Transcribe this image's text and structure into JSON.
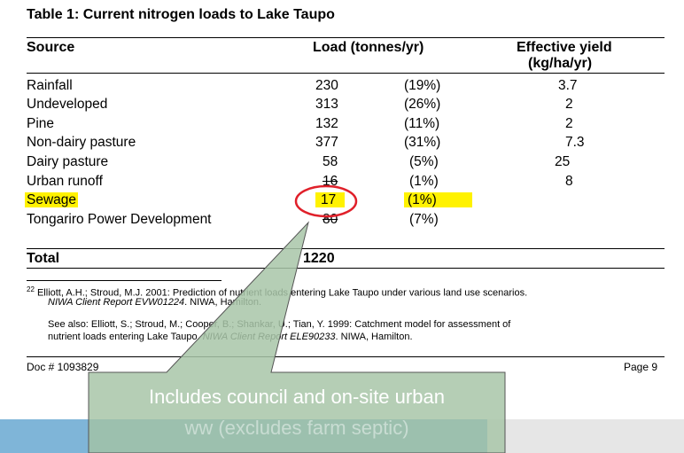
{
  "table": {
    "title": "Table 1:  Current nitrogen loads to Lake Taupo",
    "headers": {
      "source": "Source",
      "load": "Load (tonnes/yr)",
      "yield_line1": "Effective yield",
      "yield_line2": "(kg/ha/yr)"
    },
    "rows": [
      {
        "source": "Rainfall",
        "load": "230",
        "pct": "(19%)",
        "yield": "3.7"
      },
      {
        "source": "Undeveloped",
        "load": "313",
        "pct": "(26%)",
        "yield": "2"
      },
      {
        "source": "Pine",
        "load": "132",
        "pct": "(11%)",
        "yield": "2"
      },
      {
        "source": "Non-dairy pasture",
        "load": "377",
        "pct": "(31%)",
        "yield": "7.3"
      },
      {
        "source": "Dairy pasture",
        "load": "58",
        "pct": "(5%)",
        "yield": "25"
      },
      {
        "source": "Urban runoff",
        "load": "16",
        "pct": "(1%)",
        "yield": "8"
      },
      {
        "source": "Sewage",
        "load": "17",
        "pct": "(1%)",
        "yield": ""
      },
      {
        "source": "Tongariro Power Development",
        "load": "80",
        "pct": "(7%)",
        "yield": ""
      }
    ],
    "total_label": "Total",
    "total_value": "1220"
  },
  "footnote": {
    "marker": "22",
    "line1": "Elliott, A.H.; Stroud, M.J. 2001:  Prediction of nutrient loads entering Lake Taupo under various land use scenarios.",
    "line2_ital": "NIWA Client Report EVW01224",
    "line2_rest": ".  NIWA, Hamilton.",
    "line3": "See also:  Elliott, S.; Stroud, M.; Cooper, B.; Shankar, U.; Tian, Y. 1999:  Catchment model for assessment of",
    "line4_pre": "nutrient loads entering Lake Taupo.  ",
    "line4_ital": "NIWA Client Report ELE90233",
    "line4_rest": ".  NIWA, Hamilton."
  },
  "footer": {
    "doc": "Doc # 1093829",
    "page": "Page 9"
  },
  "callout": {
    "line1": "Includes council and on-site urban",
    "line2": "ww (excludes farm septic)"
  },
  "colors": {
    "highlight": "#fff200",
    "circle": "#e0202a",
    "callout_fill": "#a8c6a8",
    "band_blue": "#5aa0cf"
  }
}
